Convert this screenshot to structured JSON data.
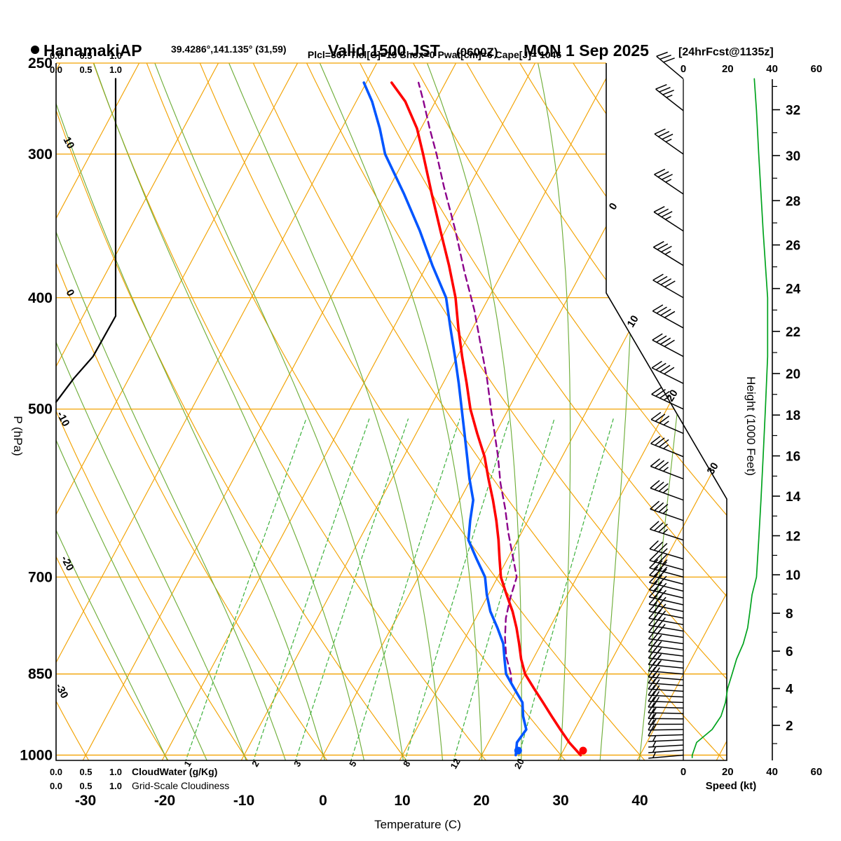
{
  "header": {
    "station": "HanamakiAP",
    "coords": "39.4286°,141.135° (31,59)",
    "valid_main": "Valid 1500 JST",
    "valid_zulu": "(0600Z)",
    "valid_date": "MON 1 Sep 2025",
    "forecast_tag": "[24hrFcst@1135z]",
    "params": "Plcl=867 Tlcl[C]=19 Shox=0 Pwat[cm]=6 Cape[J]= 1046"
  },
  "axes": {
    "pressure_label": "P (hPa)",
    "temp_label": "Temperature (C)",
    "height_label": "Height (1000 Feet)",
    "speed_label": "Speed (kt)",
    "cloudwater_label": "CloudWater (g/Kg)",
    "cloudiness_label": "Grid-Scale Cloudiness"
  },
  "colors": {
    "orange": "#f2a202",
    "green_solid": "#6fae3a",
    "green_dash": "#3cb13c",
    "green_text": "#00a31e",
    "red": "#ff0000",
    "blue": "#0055ff",
    "purple": "#8b008b",
    "param_text": "#b01060",
    "black": "#000000"
  },
  "chart_data": {
    "type": "skewt-log-p",
    "pressure_axis_hpa": [
      250,
      300,
      400,
      500,
      700,
      850,
      1000
    ],
    "temperature_axis_c": [
      -30,
      -20,
      -10,
      0,
      10,
      20,
      30,
      40
    ],
    "height_axis_kft": [
      2,
      4,
      6,
      8,
      10,
      12,
      14,
      16,
      18,
      20,
      22,
      24,
      26,
      28,
      30,
      32
    ],
    "speed_axis_kt": [
      0,
      20,
      40,
      60
    ],
    "cloud_scale": [
      "0.0",
      "0.5",
      "1.0"
    ],
    "isotherms_c": {
      "from": -120,
      "to": 60,
      "step": 10
    },
    "dry_adiabats_c": {
      "from": -40,
      "to": 160,
      "step": 10
    },
    "moist_adiabats_c": [
      -20,
      -15,
      -10,
      -5,
      0,
      5,
      10,
      15,
      20,
      25,
      30,
      35,
      40
    ],
    "mixing_ratio_lines_gkg": [
      1,
      2,
      3,
      5,
      8,
      12,
      20
    ],
    "isotherm_labels_c": [
      0,
      10,
      20,
      30
    ],
    "dry_adiabat_labels_c": [
      10,
      0,
      -10,
      -20,
      -30
    ],
    "temperature_profile": {
      "pressure_hpa": [
        1000,
        975,
        950,
        925,
        900,
        875,
        850,
        825,
        800,
        775,
        750,
        725,
        700,
        675,
        650,
        625,
        600,
        575,
        550,
        525,
        500,
        475,
        450,
        425,
        400,
        375,
        350,
        325,
        300,
        285,
        270,
        260
      ],
      "temp_c": [
        32.5,
        30.2,
        28.2,
        26.2,
        24.2,
        22.1,
        20.0,
        18.5,
        17.2,
        15.8,
        14.2,
        12.3,
        10.4,
        9.0,
        7.6,
        6.0,
        4.2,
        2.2,
        0.2,
        -2.3,
        -4.8,
        -7.0,
        -9.4,
        -11.8,
        -14.2,
        -17.2,
        -20.6,
        -24.2,
        -28.0,
        -30.5,
        -33.8,
        -36.8
      ]
    },
    "dewpoint_profile": {
      "pressure_hpa": [
        1000,
        975,
        950,
        925,
        900,
        875,
        850,
        825,
        800,
        775,
        750,
        725,
        700,
        675,
        650,
        625,
        600,
        575,
        550,
        525,
        500,
        475,
        450,
        425,
        400,
        375,
        350,
        325,
        300,
        285,
        270,
        260
      ],
      "temp_c": [
        24.3,
        23.6,
        23.9,
        22.6,
        21.6,
        19.6,
        17.6,
        16.4,
        15.2,
        13.4,
        11.4,
        9.8,
        8.4,
        6.1,
        3.8,
        2.7,
        1.7,
        -0.2,
        -2.0,
        -3.9,
        -5.9,
        -8.0,
        -10.3,
        -12.8,
        -15.4,
        -19.3,
        -23.2,
        -27.7,
        -32.8,
        -35.2,
        -38.0,
        -40.3
      ]
    },
    "parcel_profile": {
      "pressure_hpa": [
        868,
        850,
        820,
        790,
        760,
        730,
        700,
        670,
        640,
        610,
        580,
        550,
        520,
        500,
        470,
        440,
        410,
        380,
        350,
        320,
        300,
        285,
        270,
        260
      ],
      "temp_c": [
        19.0,
        18.2,
        16.4,
        15.0,
        13.8,
        13.0,
        12.4,
        10.4,
        8.3,
        6.3,
        4.0,
        1.9,
        -0.5,
        -2.2,
        -4.8,
        -7.8,
        -11.0,
        -14.8,
        -18.7,
        -23.2,
        -26.3,
        -28.9,
        -31.5,
        -33.4
      ]
    },
    "cloud_fraction_profile": {
      "pressure_hpa": [
        258,
        300,
        415,
        450,
        470,
        493
      ],
      "fraction": [
        1.0,
        1.0,
        1.0,
        0.62,
        0.3,
        0.0
      ]
    },
    "wind_profile": {
      "pressure_hpa": [
        1005,
        1000,
        975,
        950,
        925,
        900,
        875,
        850,
        825,
        800,
        775,
        750,
        725,
        700,
        650,
        600,
        550,
        500,
        450,
        400,
        350,
        300,
        275,
        258
      ],
      "speed_kt": [
        4,
        4,
        6,
        13,
        17,
        19,
        20,
        22,
        24,
        27,
        29,
        30,
        31,
        33,
        34,
        35,
        36,
        37,
        38,
        38,
        36,
        34,
        33,
        32
      ],
      "dir_deg": [
        265,
        265,
        267,
        269,
        271,
        272,
        274,
        275,
        277,
        278,
        280,
        282,
        284,
        285,
        288,
        290,
        292,
        295,
        298,
        300,
        303,
        305,
        308,
        310
      ]
    }
  }
}
